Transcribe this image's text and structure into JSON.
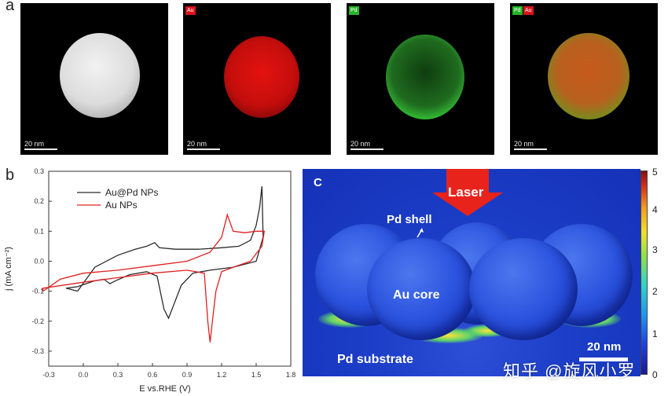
{
  "panel_a": {
    "letter": "a",
    "tiles": [
      {
        "name": "haadf",
        "tag": "",
        "scale": "20 nm"
      },
      {
        "name": "au-map",
        "tag": "Au",
        "scale": "20 nm"
      },
      {
        "name": "pd-map",
        "tag": "Pd",
        "scale": "20 nm"
      },
      {
        "name": "overlay-map",
        "tag_pd": "Pd",
        "tag_au": "Au",
        "scale": "20 nm"
      }
    ]
  },
  "panel_b": {
    "letter": "b"
  },
  "panel_c": {
    "letter": "C",
    "laser_label": "Laser",
    "pd_shell_label": "Pd shell",
    "au_core_label": "Au core",
    "pd_substrate_label": "Pd substrate",
    "scale_label": "20 nm",
    "colorbar_ticks": [
      "0",
      "1",
      "2",
      "3",
      "4",
      "5"
    ],
    "colors": {
      "laser": "#e8231c",
      "field_max": "#8a0f0f",
      "field_min": "#1a1a8e"
    }
  },
  "watermark": "知乎 @旋风小罗",
  "chart_data": {
    "type": "line",
    "xlabel": "E vs.RHE (V)",
    "ylabel": "j (mA cm⁻²)",
    "xlim": [
      -0.3,
      1.8
    ],
    "ylim": [
      -0.35,
      0.3
    ],
    "x_ticks": [
      "-0.3",
      "0.0",
      "0.3",
      "0.6",
      "0.9",
      "1.2",
      "1.5",
      "1.8"
    ],
    "y_ticks": [
      "-0.3",
      "-0.2",
      "-0.1",
      "0.0",
      "0.1",
      "0.2",
      "0.3"
    ],
    "legend": [
      "Au@Pd NPs",
      "Au NPs"
    ],
    "series": [
      {
        "name": "Au@Pd NPs",
        "color": "#2b2b2b",
        "points": [
          [
            -0.05,
            -0.1
          ],
          [
            0.1,
            -0.02
          ],
          [
            0.3,
            0.02
          ],
          [
            0.45,
            0.04
          ],
          [
            0.55,
            0.05
          ],
          [
            0.62,
            0.062
          ],
          [
            0.66,
            0.045
          ],
          [
            0.8,
            0.04
          ],
          [
            1.0,
            0.04
          ],
          [
            1.2,
            0.045
          ],
          [
            1.35,
            0.05
          ],
          [
            1.45,
            0.07
          ],
          [
            1.5,
            0.12
          ],
          [
            1.53,
            0.18
          ],
          [
            1.55,
            0.25
          ],
          [
            1.56,
            0.08
          ],
          [
            1.5,
            0.0
          ],
          [
            1.3,
            -0.02
          ],
          [
            1.1,
            -0.03
          ],
          [
            0.95,
            -0.04
          ],
          [
            0.85,
            -0.08
          ],
          [
            0.78,
            -0.15
          ],
          [
            0.74,
            -0.19
          ],
          [
            0.7,
            -0.16
          ],
          [
            0.64,
            -0.05
          ],
          [
            0.55,
            -0.035
          ],
          [
            0.4,
            -0.045
          ],
          [
            0.28,
            -0.065
          ],
          [
            0.23,
            -0.075
          ],
          [
            0.18,
            -0.06
          ],
          [
            0.1,
            -0.065
          ],
          [
            -0.05,
            -0.085
          ],
          [
            -0.15,
            -0.09
          ]
        ]
      },
      {
        "name": "Au NPs",
        "color": "#e02020",
        "points": [
          [
            -0.35,
            -0.1
          ],
          [
            -0.2,
            -0.06
          ],
          [
            0.0,
            -0.04
          ],
          [
            0.3,
            -0.03
          ],
          [
            0.6,
            -0.015
          ],
          [
            0.9,
            0.0
          ],
          [
            1.1,
            0.03
          ],
          [
            1.2,
            0.08
          ],
          [
            1.25,
            0.155
          ],
          [
            1.3,
            0.1
          ],
          [
            1.4,
            0.095
          ],
          [
            1.5,
            0.1
          ],
          [
            1.57,
            0.1
          ],
          [
            1.55,
            0.05
          ],
          [
            1.45,
            0.0
          ],
          [
            1.3,
            -0.02
          ],
          [
            1.2,
            -0.035
          ],
          [
            1.15,
            -0.1
          ],
          [
            1.12,
            -0.2
          ],
          [
            1.1,
            -0.27
          ],
          [
            1.08,
            -0.2
          ],
          [
            1.05,
            -0.04
          ],
          [
            0.9,
            -0.03
          ],
          [
            0.6,
            -0.04
          ],
          [
            0.3,
            -0.055
          ],
          [
            0.0,
            -0.07
          ],
          [
            -0.35,
            -0.09
          ]
        ]
      }
    ]
  }
}
